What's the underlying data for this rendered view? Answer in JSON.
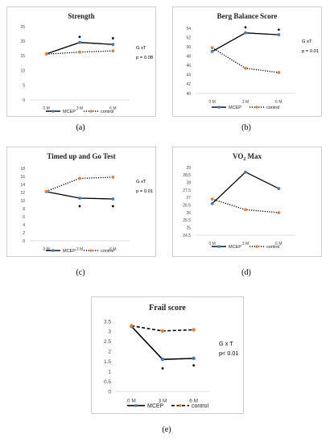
{
  "chart_data": [
    {
      "id": "a",
      "type": "line",
      "caption": "(a)",
      "title": "Strength",
      "categories": [
        "0 M",
        "3 M",
        "6 M"
      ],
      "ylim": [
        0,
        25
      ],
      "yticks": [
        0,
        5,
        10,
        15,
        20,
        25
      ],
      "series": [
        {
          "name": "MCEP",
          "values": [
            15.7,
            19.6,
            18.9
          ],
          "color": "#000000",
          "marker": "#3a7dc9",
          "dash": "solid"
        },
        {
          "name": "control",
          "values": [
            15.6,
            16.3,
            16.7
          ],
          "color": "#000000",
          "marker": "#ed7d31",
          "dash": "dotted"
        }
      ],
      "annotation": [
        "G xT",
        "p = 0.08"
      ],
      "significance": [
        {
          "category": "3 M",
          "y": 21.5
        },
        {
          "category": "6 M",
          "y": 21.0
        }
      ],
      "grid": false,
      "legend": "bottom"
    },
    {
      "id": "b",
      "type": "line",
      "caption": "(b)",
      "title": "Berg Balance Score",
      "categories": [
        "0 M",
        "3 M",
        "6 M"
      ],
      "ylim": [
        40,
        54
      ],
      "yticks": [
        40,
        42,
        44,
        46,
        48,
        50,
        52,
        54
      ],
      "series": [
        {
          "name": "MCEP",
          "values": [
            49.0,
            53.0,
            52.6
          ],
          "color": "#000000",
          "marker": "#3a7dc9",
          "dash": "solid"
        },
        {
          "name": "control",
          "values": [
            49.8,
            45.4,
            44.5
          ],
          "color": "#000000",
          "marker": "#ed7d31",
          "dash": "dotted"
        }
      ],
      "annotation": [
        "G xT",
        "p = 0.01"
      ],
      "significance": [
        {
          "category": "3 M",
          "y": 54.2
        },
        {
          "category": "6 M",
          "y": 53.7
        }
      ],
      "grid": false,
      "legend": "bottom"
    },
    {
      "id": "c",
      "type": "line",
      "caption": "(c)",
      "title": "Timed up and Go Test",
      "categories": [
        "0 M",
        "3 M",
        "6 M"
      ],
      "ylim": [
        0,
        18
      ],
      "yticks": [
        0,
        2,
        4,
        6,
        8,
        10,
        12,
        14,
        16,
        18
      ],
      "series": [
        {
          "name": "MCEP",
          "values": [
            12.2,
            10.6,
            10.4
          ],
          "color": "#000000",
          "marker": "#3a7dc9",
          "dash": "solid"
        },
        {
          "name": "control",
          "values": [
            12.3,
            15.5,
            15.8
          ],
          "color": "#000000",
          "marker": "#ed7d31",
          "dash": "dotted"
        }
      ],
      "annotation": [
        "G xT",
        "p = 0.01"
      ],
      "significance": [
        {
          "category": "3 M",
          "y": 8.6
        },
        {
          "category": "6 M",
          "y": 8.6
        }
      ],
      "grid": false,
      "legend": "bottom"
    },
    {
      "id": "d",
      "type": "line",
      "caption": "(d)",
      "title": "VO",
      "title_sub": "2",
      "title_tail": " Max",
      "categories": [
        "0 M",
        "3 M",
        "6 M"
      ],
      "ylim": [
        24.5,
        29
      ],
      "yticks": [
        24.5,
        25,
        25.5,
        26,
        26.5,
        27,
        27.5,
        28,
        28.5,
        29
      ],
      "series": [
        {
          "name": "MCEP",
          "values": [
            26.6,
            28.7,
            27.6
          ],
          "color": "#000000",
          "marker": "#3a7dc9",
          "dash": "solid"
        },
        {
          "name": "control",
          "values": [
            26.9,
            26.2,
            26.0
          ],
          "color": "#000000",
          "marker": "#ed7d31",
          "dash": "dotted"
        }
      ],
      "annotation": [],
      "significance": [],
      "grid": false,
      "legend": "bottom"
    },
    {
      "id": "e",
      "type": "line",
      "caption": "(e)",
      "title": "Frail score",
      "categories": [
        "0 M",
        "3 M",
        "6 M"
      ],
      "ylim": [
        0,
        3.5
      ],
      "yticks": [
        0,
        0.5,
        1,
        1.5,
        2,
        2.5,
        3,
        3.5
      ],
      "series": [
        {
          "name": "MCEP",
          "values": [
            3.25,
            1.6,
            1.65
          ],
          "color": "#000000",
          "marker": "#3a7dc9",
          "dash": "solid"
        },
        {
          "name": "control",
          "values": [
            3.28,
            3.02,
            3.08
          ],
          "color": "#000000",
          "marker": "#ed7d31",
          "dash": "dashed"
        }
      ],
      "annotation": [
        "G x T",
        "p< 0.01"
      ],
      "significance": [
        {
          "category": "3 M",
          "y": 1.15
        },
        {
          "category": "6 M",
          "y": 1.3
        }
      ],
      "grid": false,
      "legend": "bottom"
    }
  ]
}
